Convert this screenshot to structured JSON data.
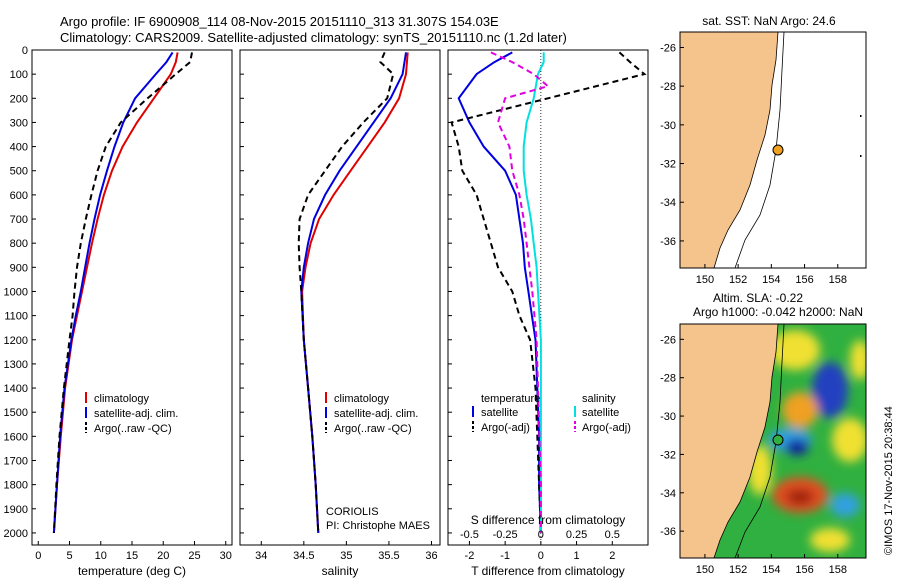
{
  "header": {
    "line1": "Argo profile: IF 6900908_114 08-Nov-2015 20151110_313 31.307S 154.03E",
    "line2": "Climatology: CARS2009. Satellite-adjusted climatology: synTS_20151110.nc (1.2d later)"
  },
  "depth_ticks": [
    "0",
    "100",
    "200",
    "300",
    "400",
    "500",
    "600",
    "700",
    "800",
    "900",
    "1000",
    "1100",
    "1200",
    "1300",
    "1400",
    "1500",
    "1600",
    "1700",
    "1800",
    "1900",
    "2000"
  ],
  "colors": {
    "climatology": "#e00000",
    "satellite": "#0000e0",
    "argo": "#000000",
    "sal_sat": "#00e0e0",
    "sal_argo": "#e000e0",
    "land": "#f5c38c",
    "ocean": "#ffffff"
  },
  "panel_temp": {
    "xlabel": "temperature (deg C)",
    "xticks": [
      "0",
      "5",
      "10",
      "15",
      "20",
      "25",
      "30"
    ],
    "legend": [
      "climatology",
      "satellite-adj. clim.",
      "Argo(..raw -QC)"
    ]
  },
  "panel_sal": {
    "xlabel": "salinity",
    "xticks": [
      "34",
      "34.5",
      "35",
      "35.5",
      "36"
    ],
    "legend": [
      "climatology",
      "satellite-adj. clim.",
      "Argo(..raw -QC)"
    ],
    "source": "CORIOLIS",
    "pi": "PI: Christophe MAES"
  },
  "panel_diff": {
    "xlabel": "T difference from climatology",
    "top_label": "S difference from climatology",
    "xticks_t": [
      "-2",
      "-1",
      "0",
      "1",
      "2"
    ],
    "xticks_s": [
      "-0.5",
      "-0.25",
      "0",
      "0.25",
      "0.5"
    ],
    "legend_t_title": "temperature",
    "legend_t": [
      "satellite",
      "Argo(-adj)"
    ],
    "legend_s_title": "salinity",
    "legend_s": [
      "satellite",
      "Argo(-adj)"
    ]
  },
  "map_sst": {
    "title": "sat. SST: NaN Argo: 24.6",
    "lat_ticks": [
      "-26",
      "-28",
      "-30",
      "-32",
      "-34",
      "-36"
    ],
    "lon_ticks": [
      "150",
      "152",
      "154",
      "156",
      "158"
    ]
  },
  "map_sla": {
    "title1": "Altim. SLA: -0.22",
    "title2": "Argo h1000: -0.042 h2000: NaN",
    "lat_ticks": [
      "-26",
      "-28",
      "-30",
      "-32",
      "-34",
      "-36"
    ],
    "lon_ticks": [
      "150",
      "152",
      "154",
      "156",
      "158"
    ]
  },
  "credit": "©IMOS 17-Nov-2015 20:38:44",
  "chart_data": [
    {
      "type": "line",
      "xlabel": "temperature (deg C)",
      "xlim": [
        -1,
        31
      ],
      "ylim": [
        2050,
        0
      ],
      "series": [
        {
          "name": "climatology",
          "depth": [
            10,
            50,
            100,
            200,
            300,
            400,
            500,
            600,
            700,
            800,
            900,
            1000,
            1100,
            1200,
            1400,
            1600,
            1800,
            2000
          ],
          "values": [
            22.3,
            22.0,
            21.2,
            18.5,
            15.8,
            13.5,
            11.8,
            10.5,
            9.5,
            8.6,
            7.8,
            7.0,
            6.2,
            5.4,
            4.3,
            3.6,
            3.0,
            2.5
          ]
        },
        {
          "name": "satellite-adj. clim.",
          "depth": [
            10,
            50,
            100,
            200,
            300,
            400,
            500,
            600,
            700,
            800,
            900,
            1000,
            1100,
            1200,
            1400,
            1600,
            1800,
            2000
          ],
          "values": [
            21.5,
            20.5,
            18.8,
            15.5,
            13.6,
            12.2,
            11.0,
            9.9,
            9.0,
            8.2,
            7.5,
            6.8,
            6.0,
            5.3,
            4.2,
            3.5,
            3.0,
            2.5
          ]
        },
        {
          "name": "Argo(..raw -QC)",
          "depth": [
            10,
            50,
            100,
            200,
            300,
            400,
            500,
            600,
            700,
            800,
            900,
            1000,
            1100,
            1200,
            1400,
            1600,
            1800,
            2000
          ],
          "values": [
            24.6,
            24.3,
            22.0,
            17.5,
            13.2,
            10.8,
            9.5,
            8.5,
            7.6,
            6.8,
            6.2,
            5.8,
            5.5,
            5.0,
            4.1,
            3.4,
            2.9,
            2.5
          ]
        }
      ]
    },
    {
      "type": "line",
      "xlabel": "salinity",
      "xlim": [
        33.75,
        36.1
      ],
      "ylim": [
        2050,
        0
      ],
      "series": [
        {
          "name": "climatology",
          "depth": [
            10,
            100,
            200,
            300,
            400,
            500,
            600,
            700,
            800,
            900,
            1000,
            1200,
            1400,
            1600,
            1800,
            2000
          ],
          "values": [
            35.72,
            35.7,
            35.62,
            35.45,
            35.25,
            35.05,
            34.85,
            34.68,
            34.58,
            34.52,
            34.48,
            34.5,
            34.55,
            34.6,
            34.64,
            34.67
          ]
        },
        {
          "name": "satellite-adj. clim.",
          "depth": [
            10,
            100,
            200,
            300,
            400,
            500,
            600,
            700,
            800,
            900,
            1000,
            1200,
            1400,
            1600,
            1800,
            2000
          ],
          "values": [
            35.7,
            35.66,
            35.52,
            35.32,
            35.12,
            34.92,
            34.75,
            34.62,
            34.55,
            34.5,
            34.47,
            34.5,
            34.55,
            34.6,
            34.64,
            34.67
          ]
        },
        {
          "name": "Argo(..raw -QC)",
          "depth": [
            10,
            50,
            100,
            200,
            300,
            400,
            500,
            600,
            700,
            800,
            900,
            1000,
            1200,
            1400,
            1600,
            1800,
            2000
          ],
          "values": [
            35.45,
            35.4,
            35.55,
            35.48,
            35.2,
            34.95,
            34.75,
            34.55,
            34.45,
            34.44,
            34.45,
            34.47,
            34.5,
            34.55,
            34.6,
            34.64,
            34.67
          ]
        }
      ]
    },
    {
      "type": "line",
      "xlabel": "T difference from climatology",
      "xlim": [
        -2.6,
        3.0
      ],
      "ylim": [
        2050,
        0
      ],
      "series": [
        {
          "name": "satellite",
          "depth": [
            10,
            50,
            100,
            200,
            300,
            400,
            500,
            600,
            700,
            800,
            900,
            1000,
            1100,
            1200,
            1400,
            1600,
            1800,
            2000
          ],
          "values": [
            -0.8,
            -1.3,
            -1.8,
            -2.3,
            -2.0,
            -1.6,
            -1.0,
            -0.7,
            -0.6,
            -0.5,
            -0.45,
            -0.35,
            -0.25,
            -0.15,
            -0.1,
            -0.05,
            -0.05,
            0
          ]
        },
        {
          "name": "Argo(-adj)",
          "depth": [
            10,
            50,
            100,
            200,
            300,
            400,
            500,
            600,
            700,
            800,
            900,
            1000,
            1100,
            1200,
            1400,
            1600,
            1800,
            2000
          ],
          "values": [
            2.2,
            2.5,
            2.9,
            0.2,
            -2.5,
            -2.3,
            -2.2,
            -1.8,
            -1.6,
            -1.4,
            -1.2,
            -0.8,
            -0.6,
            -0.3,
            -0.15,
            -0.1,
            -0.05,
            0
          ]
        }
      ]
    },
    {
      "type": "line",
      "xlabel": "S difference from climatology",
      "xlim": [
        -0.65,
        0.75
      ],
      "ylim": [
        2050,
        0
      ],
      "series": [
        {
          "name": "satellite",
          "depth": [
            10,
            50,
            100,
            200,
            300,
            400,
            500,
            600,
            700,
            800,
            900,
            1000,
            1200,
            1400,
            1600,
            1800,
            2000
          ],
          "values": [
            0.02,
            0.02,
            -0.02,
            -0.05,
            -0.1,
            -0.12,
            -0.12,
            -0.1,
            -0.07,
            -0.05,
            -0.03,
            -0.02,
            0,
            0,
            0,
            0,
            0
          ]
        },
        {
          "name": "Argo(-adj)",
          "depth": [
            10,
            50,
            100,
            150,
            200,
            300,
            400,
            500,
            600,
            700,
            800,
            900,
            1000,
            1200,
            1400,
            1600,
            1800,
            2000
          ],
          "values": [
            -0.35,
            -0.2,
            -0.05,
            0.05,
            -0.25,
            -0.3,
            -0.22,
            -0.2,
            -0.15,
            -0.12,
            -0.1,
            -0.08,
            -0.06,
            -0.03,
            -0.02,
            -0.01,
            0,
            0
          ]
        }
      ]
    }
  ]
}
